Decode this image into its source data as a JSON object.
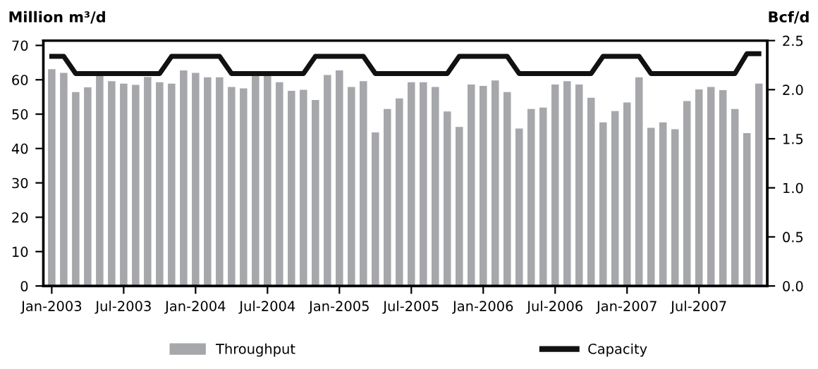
{
  "chart_data": {
    "type": "bar",
    "categories": [
      "Jan-2003",
      null,
      null,
      null,
      null,
      null,
      "Jul-2003",
      null,
      null,
      null,
      null,
      null,
      "Jan-2004",
      null,
      null,
      null,
      null,
      null,
      "Jul-2004",
      null,
      null,
      null,
      null,
      null,
      "Jan-2005",
      null,
      null,
      null,
      null,
      null,
      "Jul-2005",
      null,
      null,
      null,
      null,
      null,
      "Jan-2006",
      null,
      null,
      null,
      null,
      null,
      "Jul-2006",
      null,
      null,
      null,
      null,
      null,
      "Jan-2007",
      null,
      null,
      null,
      null,
      null,
      "Jul-2007",
      null,
      null,
      null,
      null,
      null
    ],
    "series": [
      {
        "name": "Throughput",
        "color": "#a6a7aa",
        "values": [
          63.1,
          62.0,
          56.4,
          57.8,
          61.4,
          59.6,
          58.9,
          58.5,
          60.8,
          59.3,
          58.9,
          62.7,
          62.0,
          60.7,
          60.7,
          57.9,
          57.5,
          61.4,
          61.4,
          59.3,
          56.8,
          57.1,
          54.1,
          61.4,
          62.7,
          57.9,
          59.6,
          44.7,
          51.5,
          54.6,
          59.3,
          59.3,
          57.9,
          50.8,
          46.3,
          58.6,
          58.2,
          59.8,
          56.4,
          45.8,
          51.5,
          51.9,
          58.6,
          59.6,
          58.6,
          54.8,
          47.6,
          50.9,
          53.4,
          60.7,
          46.0,
          47.6,
          45.6,
          53.8,
          57.2,
          57.9,
          57.0,
          51.5,
          44.5,
          58.9
        ]
      },
      {
        "name": "Capacity",
        "type": "line",
        "color": "#111111",
        "values": [
          66.8,
          66.8,
          61.8,
          61.8,
          61.8,
          61.8,
          61.8,
          61.8,
          61.8,
          61.8,
          66.8,
          66.8,
          66.8,
          66.8,
          66.8,
          61.8,
          61.8,
          61.8,
          61.8,
          61.8,
          61.8,
          61.8,
          66.8,
          66.8,
          66.8,
          66.8,
          66.8,
          61.8,
          61.8,
          61.8,
          61.8,
          61.8,
          61.8,
          61.8,
          66.8,
          66.8,
          66.8,
          66.8,
          66.8,
          61.8,
          61.8,
          61.8,
          61.8,
          61.8,
          61.8,
          61.8,
          66.8,
          66.8,
          66.8,
          66.8,
          61.8,
          61.8,
          61.8,
          61.8,
          61.8,
          61.8,
          61.8,
          61.8,
          67.6,
          67.6
        ]
      }
    ],
    "ylabel": "Million m³/d",
    "y2label": "Bcf/d",
    "ylim": [
      0,
      71.4
    ],
    "yticks": [
      0,
      10,
      20,
      30,
      40,
      50,
      60,
      70
    ],
    "y2lim": [
      0,
      2.5
    ],
    "y2ticks": [
      {
        "value": 0,
        "label": "0.0"
      },
      {
        "value": 0.5,
        "label": "0.5"
      },
      {
        "value": 1,
        "label": "1.0"
      },
      {
        "value": 1.5,
        "label": "1.5"
      },
      {
        "value": 2,
        "label": "2.0"
      },
      {
        "value": 2.5,
        "label": "2.5"
      }
    ],
    "grid": false,
    "legend": "bottom"
  }
}
